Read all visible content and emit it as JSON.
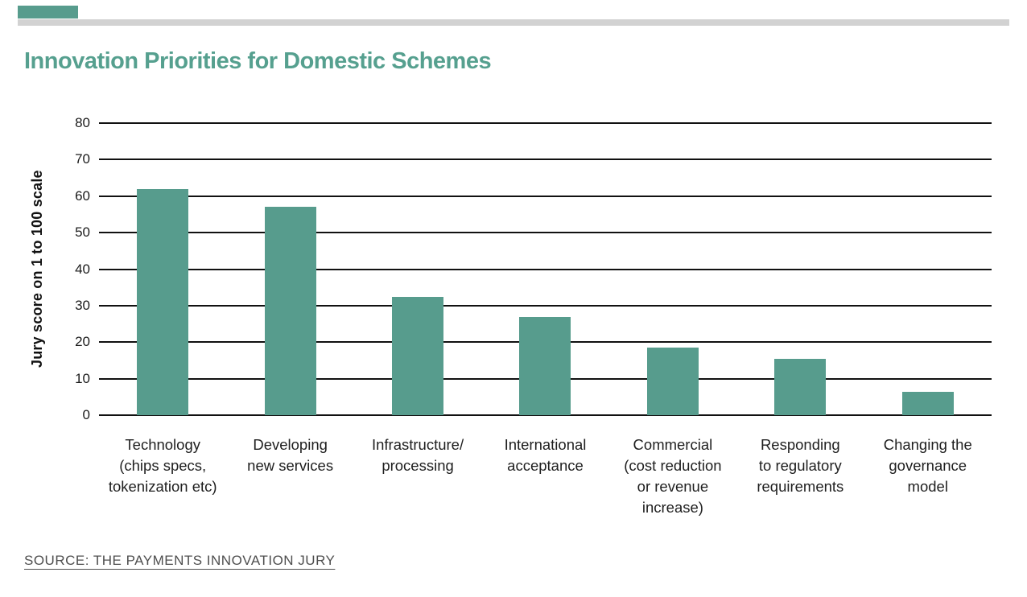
{
  "page": {
    "background": "#FFFFFF",
    "accent_bar_color": "#579C8D",
    "divider_color": "#D2D2D2"
  },
  "header": {
    "title": "Innovation Priorities for Domestic Schemes",
    "title_color": "#56A08F"
  },
  "footer": {
    "source": "SOURCE: THE PAYMENTS INNOVATION JURY",
    "source_color": "#4E4E4E"
  },
  "chart_data": {
    "type": "bar",
    "title": "Innovation Priorities for Domestic Schemes",
    "xlabel": "",
    "ylabel": "Jury score on 1 to 100 scale",
    "ylim": [
      0,
      80
    ],
    "ytick_step": 10,
    "yticks": [
      0,
      10,
      20,
      30,
      40,
      50,
      60,
      70,
      80
    ],
    "grid": "horizontal-solid-black",
    "legend_position": "none",
    "bar_color": "#579C8D",
    "tick_text_color": "#1B1B1B",
    "categories": [
      "Technology (chips specs, tokenization etc)",
      "Developing new services",
      "Infrastructure/processing",
      "International acceptance",
      "Commercial (cost reduction or revenue increase)",
      "Responding to regulatory requirements",
      "Changing the governance model"
    ],
    "xaxis_labels": [
      "Technology\n(chips specs,\ntokenization etc)",
      "Developing\nnew services",
      "Infrastructure/\nprocessing",
      "International\nacceptance",
      "Commercial\n(cost reduction\nor revenue\nincrease)",
      "Responding\nto regulatory\nrequirements",
      "Changing the\ngovernance\nmodel"
    ],
    "values": [
      62,
      57,
      32.5,
      27,
      18.5,
      15.5,
      6.5
    ]
  }
}
